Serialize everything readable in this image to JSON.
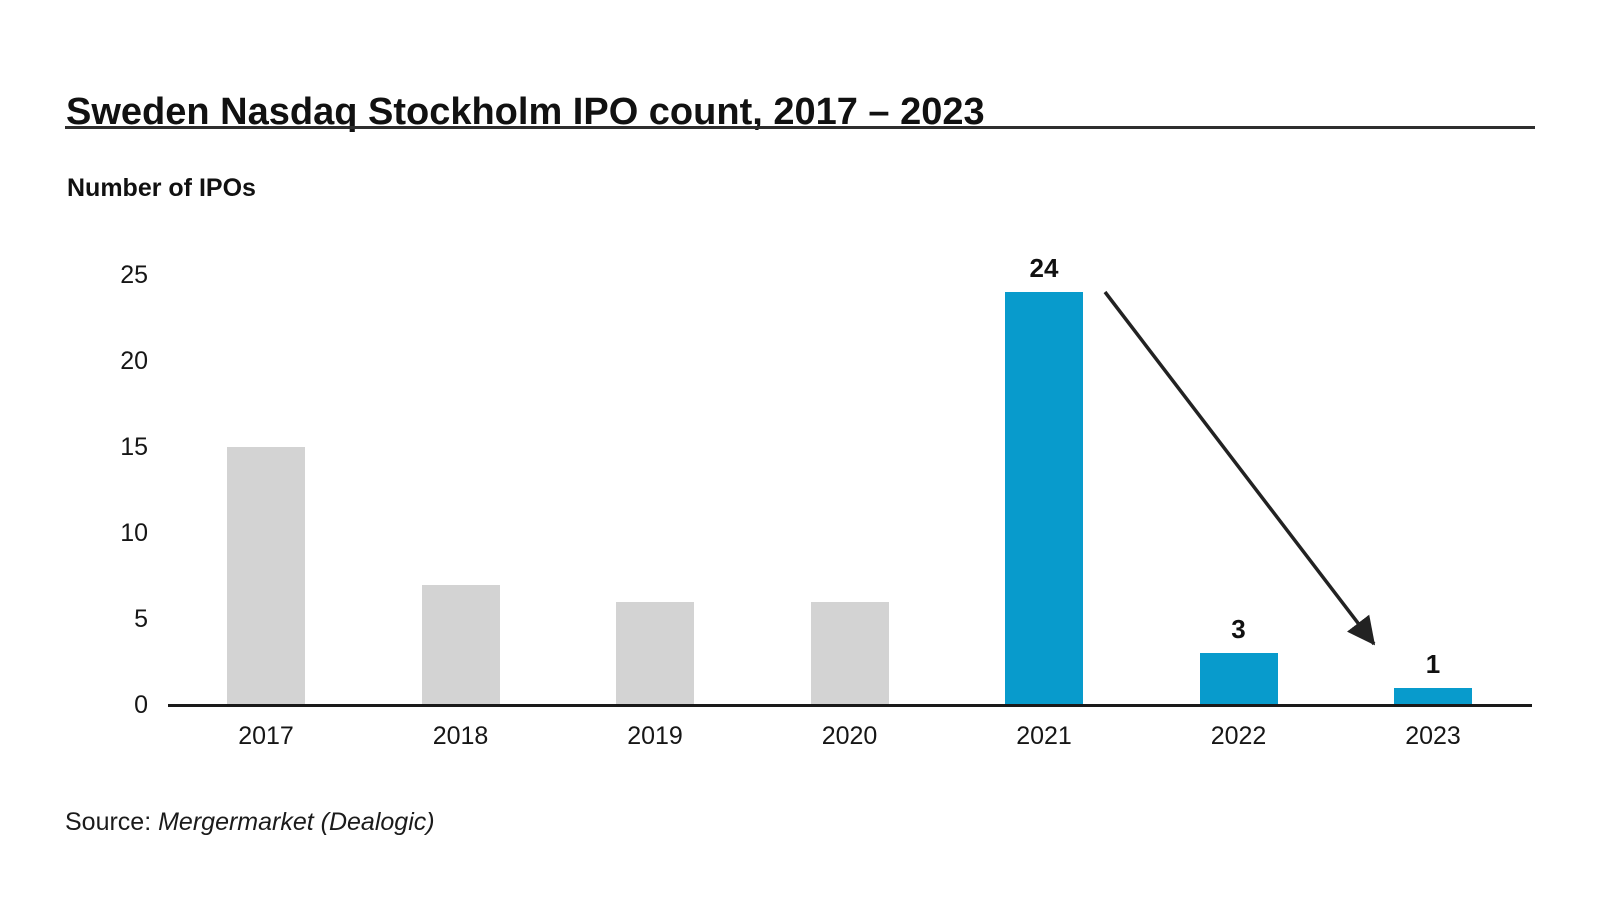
{
  "header": {
    "title": "Sweden Nasdaq Stockholm IPO count, 2017 – 2023"
  },
  "source": {
    "prefix": "Source: ",
    "name": "Mergermarket (Dealogic)"
  },
  "chart_data": {
    "type": "bar",
    "title": "Sweden Nasdaq Stockholm IPO count, 2017 – 2023",
    "ylabel": "Number of IPOs",
    "xlabel": "",
    "categories": [
      "2017",
      "2018",
      "2019",
      "2020",
      "2021",
      "2022",
      "2023"
    ],
    "values": [
      15,
      7,
      6,
      6,
      24,
      3,
      1
    ],
    "bar_colors": [
      "gray",
      "gray",
      "gray",
      "gray",
      "blue",
      "blue",
      "blue"
    ],
    "data_labels": [
      null,
      null,
      null,
      null,
      "24",
      "3",
      "1"
    ],
    "yticks": [
      0,
      5,
      10,
      15,
      20,
      25
    ],
    "ylim": [
      0,
      25
    ],
    "grid": false,
    "legend": null,
    "annotation": {
      "type": "arrow",
      "from_year": "2021",
      "to_year": "2023",
      "meaning": "decline from 24 IPOs in 2021 to 1 IPO in 2023"
    },
    "colors": {
      "blue": "#089bcc",
      "gray": "#d3d3d3",
      "axis": "#1a1a1a",
      "text": "#161616"
    }
  }
}
